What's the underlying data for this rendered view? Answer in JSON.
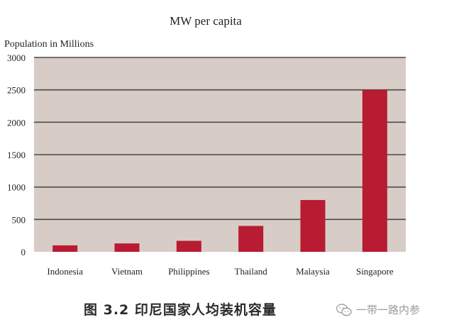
{
  "chart_data": {
    "type": "bar",
    "title": "MW per capita",
    "ylabel": "Population in Millions",
    "xlabel": "",
    "categories": [
      "Indonesia",
      "Vietnam",
      "Philippines",
      "Thailand",
      "Malaysia",
      "Singapore"
    ],
    "values": [
      100,
      130,
      170,
      400,
      800,
      2500
    ],
    "ylim": [
      0,
      3000
    ],
    "yticks": [
      0,
      500,
      1000,
      1500,
      2000,
      2500,
      3000
    ],
    "grid": true,
    "colors": {
      "bar": "#b71c32",
      "plot_bg": "#d8ccc6",
      "grid": "#4a4a4a"
    }
  },
  "caption": "图 3.2   印尼国家人均装机容量",
  "watermark": {
    "text": "一带一路内参",
    "icon": "wechat-icon"
  }
}
